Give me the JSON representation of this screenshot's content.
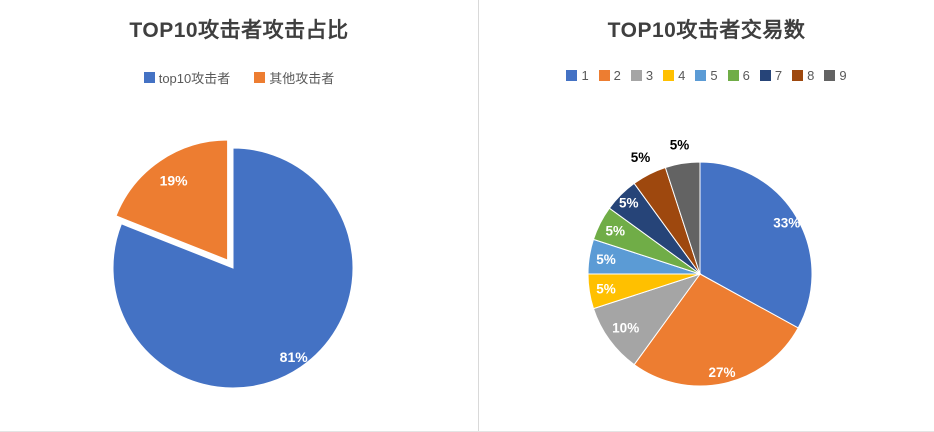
{
  "page": {
    "background": "#ffffff",
    "divider_color": "#d9d9d9"
  },
  "chart_data": [
    {
      "type": "pie",
      "title": "TOP10攻击者攻击占比",
      "legend_position": "top",
      "categories": [
        "top10攻击者",
        "其他攻击者"
      ],
      "values": [
        81,
        19
      ],
      "unit": "percent",
      "colors": [
        "#4472C4",
        "#ED7D31"
      ],
      "data_labels": [
        "81%",
        "19%"
      ],
      "label_colors": [
        "#ffffff",
        "#ffffff"
      ],
      "label_radius": [
        0.9,
        0.8
      ],
      "explode": [
        0,
        0.08
      ],
      "start_angle": 0,
      "direction": "clockwise"
    },
    {
      "type": "pie",
      "title": "TOP10攻击者交易数",
      "legend_position": "top",
      "categories": [
        "1",
        "2",
        "3",
        "4",
        "5",
        "6",
        "7",
        "8",
        "9"
      ],
      "values": [
        33,
        27,
        10,
        5,
        5,
        5,
        5,
        5,
        5
      ],
      "unit": "percent",
      "colors": [
        "#4472C4",
        "#ED7D31",
        "#A5A5A5",
        "#FFC000",
        "#5B9BD5",
        "#70AD47",
        "#264478",
        "#9E480E",
        "#636363"
      ],
      "data_labels": [
        "33%",
        "27%",
        "10%",
        "5%",
        "5%",
        "5%",
        "5%",
        "5%",
        "5%"
      ],
      "label_colors": [
        "#ffffff",
        "#ffffff",
        "#ffffff",
        "#ffffff",
        "#ffffff",
        "#ffffff",
        "#ffffff",
        "#000000",
        "#000000"
      ],
      "label_radius": [
        0.9,
        0.9,
        0.82,
        0.85,
        0.85,
        0.85,
        0.9,
        1.17,
        1.17
      ],
      "explode": [
        0,
        0,
        0,
        0,
        0,
        0,
        0,
        0,
        0
      ],
      "start_angle": 0,
      "direction": "clockwise"
    }
  ]
}
